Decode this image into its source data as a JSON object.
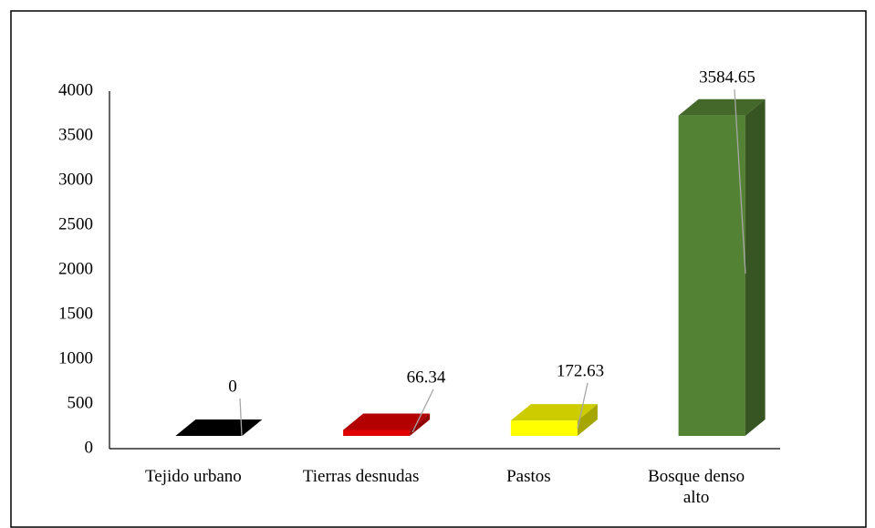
{
  "chart_data": {
    "type": "bar3d",
    "categories": [
      "Tejido urbano",
      "Tierras desnudas",
      "Pastos",
      "Bosque denso alto"
    ],
    "values": [
      0,
      66.34,
      172.63,
      3584.65
    ],
    "colors": [
      "#000000",
      "#e00000",
      "#ffff00",
      "#548235"
    ],
    "ylim": [
      0,
      4000
    ],
    "yticks": [
      0,
      500,
      1000,
      1500,
      2000,
      2500,
      3000,
      3500,
      4000
    ],
    "grid": false
  }
}
